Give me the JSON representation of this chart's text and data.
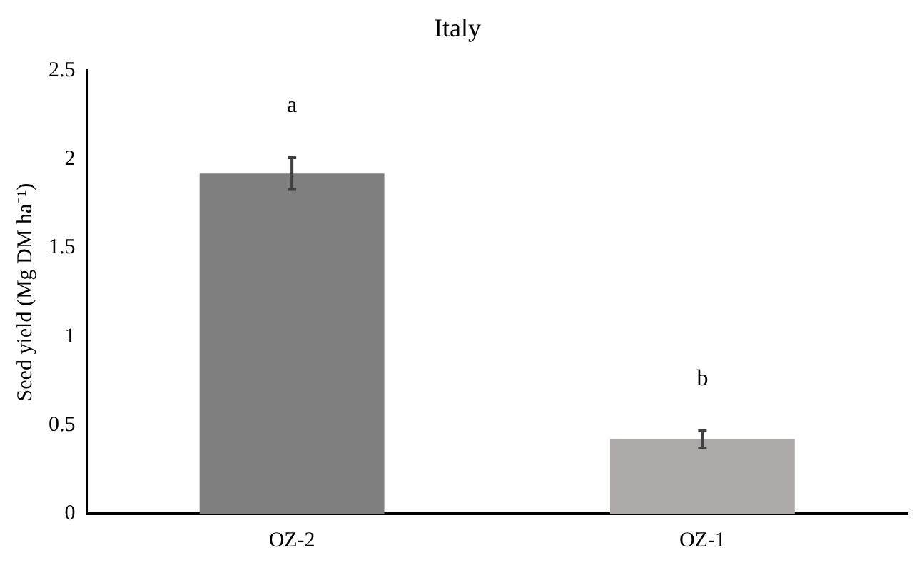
{
  "chart_data": {
    "type": "bar",
    "title": "Italy",
    "ylabel": "Seed yield (Mg DM ha⁻¹)",
    "categories": [
      "OZ-2",
      "OZ-1"
    ],
    "values": [
      1.92,
      0.42
    ],
    "colors": [
      "#7f7f7f",
      "#aeaaaa"
    ],
    "errors": [
      0.09,
      0.05
    ],
    "ylim": [
      0,
      2.5
    ],
    "yticks": [
      0,
      0.5,
      1,
      1.5,
      2,
      2.5
    ],
    "grid": false,
    "legend": false,
    "annotations": [
      "a",
      "b"
    ]
  }
}
